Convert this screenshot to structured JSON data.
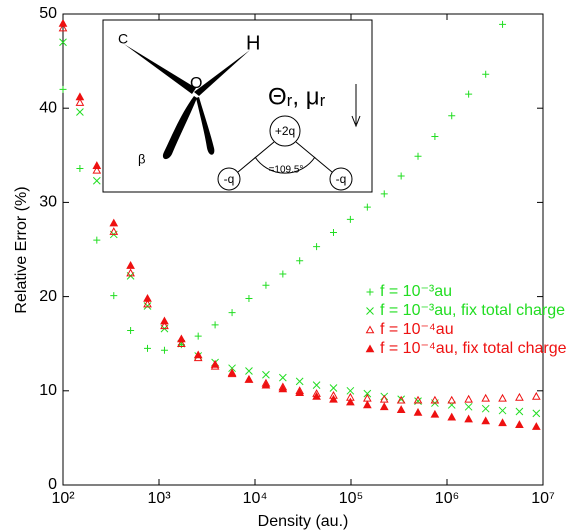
{
  "chart_data": {
    "type": "scatter",
    "x_label": "Density  (au.)",
    "y_label": "Relative Error  (%)",
    "xscale": "log",
    "xlim": [
      100,
      10000000
    ],
    "ylim": [
      0,
      50
    ],
    "xticks": [
      {
        "value": 100,
        "label": "10²"
      },
      {
        "value": 1000,
        "label": "10³"
      },
      {
        "value": 10000,
        "label": "10⁴"
      },
      {
        "value": 100000,
        "label": "10⁵"
      },
      {
        "value": 1000000,
        "label": "10⁶"
      },
      {
        "value": 10000000,
        "label": "10⁷"
      }
    ],
    "yticks": [
      0,
      10,
      20,
      30,
      40,
      50
    ],
    "grid": false,
    "legend_position": "right",
    "series": [
      {
        "name": "f = 10⁻³au",
        "color": "#22dd22",
        "marker": "plus",
        "x": [
          100,
          150,
          225,
          338,
          506,
          759,
          1140,
          1710,
          2560,
          3840,
          5770,
          8650,
          13000,
          19500,
          29200,
          43800,
          65700,
          98500,
          148000,
          222000,
          333000,
          499000,
          748000,
          1120000,
          1680000,
          2530000,
          3790000
        ],
        "values": [
          42.0,
          33.6,
          26.0,
          20.1,
          16.4,
          14.5,
          14.3,
          14.9,
          15.8,
          17.0,
          18.3,
          19.8,
          21.2,
          22.4,
          23.8,
          25.3,
          26.8,
          28.2,
          29.5,
          30.9,
          32.8,
          34.9,
          37.0,
          39.2,
          41.5,
          43.6,
          48.9
        ]
      },
      {
        "name": "f = 10⁻³au, fix total charge",
        "color": "#22dd22",
        "marker": "cross",
        "x": [
          100,
          150,
          225,
          338,
          506,
          759,
          1140,
          1710,
          2560,
          3840,
          5770,
          8650,
          13000,
          19500,
          29200,
          43800,
          65700,
          98500,
          148000,
          222000,
          333000,
          499000,
          748000,
          1120000,
          1680000,
          2530000,
          3790000,
          5680000,
          8520000
        ],
        "values": [
          47.0,
          39.6,
          32.3,
          26.6,
          22.2,
          19.0,
          16.6,
          15.0,
          13.7,
          13.0,
          12.4,
          12.1,
          11.7,
          11.4,
          11.0,
          10.6,
          10.3,
          10.0,
          9.7,
          9.4,
          9.1,
          8.9,
          8.7,
          8.5,
          8.3,
          8.1,
          7.9,
          7.8,
          7.6
        ]
      },
      {
        "name": "f = 10⁻⁴au",
        "color": "#ee1111",
        "marker": "triangle-open",
        "x": [
          100,
          150,
          225,
          338,
          506,
          759,
          1140,
          1710,
          2560,
          3840,
          5770,
          8650,
          13000,
          19500,
          29200,
          43800,
          65700,
          98500,
          148000,
          222000,
          333000,
          499000,
          748000,
          1120000,
          1680000,
          2530000,
          3790000,
          5680000,
          8520000
        ],
        "values": [
          48.5,
          40.6,
          33.4,
          26.9,
          22.5,
          19.2,
          16.9,
          15.0,
          13.5,
          12.6,
          11.8,
          11.2,
          10.8,
          10.4,
          10.0,
          9.7,
          9.5,
          9.3,
          9.2,
          9.1,
          9.0,
          9.0,
          9.0,
          9.0,
          9.1,
          9.2,
          9.2,
          9.3,
          9.4
        ]
      },
      {
        "name": "f = 10⁻⁴au, fix total charge",
        "color": "#ee1111",
        "marker": "triangle",
        "x": [
          100,
          150,
          225,
          338,
          506,
          759,
          1140,
          1710,
          2560,
          3840,
          5770,
          8650,
          13000,
          19500,
          29200,
          43800,
          65700,
          98500,
          148000,
          222000,
          333000,
          499000,
          748000,
          1120000,
          1680000,
          2530000,
          3790000,
          5680000,
          8520000
        ],
        "values": [
          49.0,
          41.2,
          33.9,
          27.8,
          23.3,
          19.8,
          17.4,
          15.5,
          13.8,
          12.8,
          11.9,
          11.2,
          10.6,
          10.2,
          9.8,
          9.4,
          9.1,
          8.8,
          8.5,
          8.3,
          8.0,
          7.7,
          7.5,
          7.2,
          7.0,
          6.8,
          6.6,
          6.4,
          6.2
        ]
      }
    ],
    "inset": {
      "c": "C",
      "h": "H",
      "o": "O",
      "moment": "Θᵣ, μᵣ",
      "center_charge": "+2q",
      "left_charge": "-q",
      "right_charge": "-q",
      "angle": "=109.5°",
      "beta": "β"
    }
  }
}
